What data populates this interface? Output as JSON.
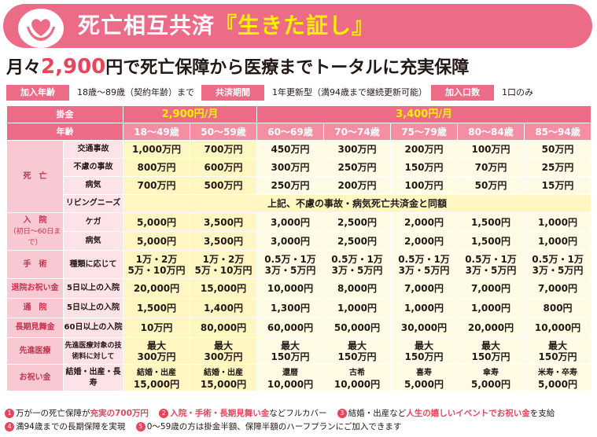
{
  "banner": {
    "title_main": "死亡相互共済",
    "title_highlight": "『生きた証し』"
  },
  "headline": {
    "pre": "月々",
    "amount": "2,900",
    "post": "円で死亡保障から医療までトータルに充実保障"
  },
  "conditions": [
    {
      "label": "加入年齢",
      "value": "18歳～89歳（契約年齢）まで"
    },
    {
      "label": "共済期間",
      "value": "1年更新型（満94歳まで継続更新可能）"
    },
    {
      "label": "加入口数",
      "value": "1口のみ"
    }
  ],
  "table": {
    "premium_label": "掛金",
    "premium_a": "2,900円/月",
    "premium_b": "3,400円/月",
    "age_label": "年齢",
    "ages": [
      "18～49歳",
      "50～59歳",
      "60～69歳",
      "70～74歳",
      "75～79歳",
      "80～84歳",
      "85～94歳"
    ],
    "death_label": "死　亡",
    "death_rows": [
      {
        "sub": "交通事故",
        "values": [
          "1,000万円",
          "700万円",
          "450万円",
          "300万円",
          "200万円",
          "100万円",
          "50万円"
        ]
      },
      {
        "sub": "不慮の事故",
        "values": [
          "800万円",
          "600万円",
          "300万円",
          "250万円",
          "150万円",
          "70万円",
          "25万円"
        ]
      },
      {
        "sub": "病気",
        "values": [
          "700万円",
          "500万円",
          "250万円",
          "200万円",
          "100万円",
          "50万円",
          "15万円"
        ]
      }
    ],
    "living_needs": {
      "sub": "リビングニーズ",
      "value": "上記、不慮の事故・病気死亡共済金と同額"
    },
    "hosp_label": "入　院",
    "hosp_note": "（初日～60日まで）",
    "hosp_rows": [
      {
        "sub": "ケガ",
        "values": [
          "5,000円",
          "3,500円",
          "3,000円",
          "2,500円",
          "2,000円",
          "1,500円",
          "1,000円"
        ]
      },
      {
        "sub": "病気",
        "values": [
          "5,000円",
          "3,500円",
          "3,000円",
          "2,500円",
          "2,000円",
          "1,500円",
          "1,000円"
        ]
      }
    ],
    "surgery": {
      "label": "手　術",
      "sub": "種類に応じて",
      "values": [
        [
          "1万・2万",
          "5万・10万円"
        ],
        [
          "1万・2万",
          "5万・10万円"
        ],
        [
          "0.5万・1万",
          "3万・5万円"
        ],
        [
          "0.5万・1万",
          "3万・5万円"
        ],
        [
          "0.5万・1万",
          "3万・5万円"
        ],
        [
          "0.5万・1万",
          "3万・5万円"
        ],
        [
          "0.5万・1万",
          "3万・5万円"
        ]
      ]
    },
    "discharge": {
      "label": "退院お祝い金",
      "sub": "5日以上の入院",
      "values": [
        "20,000円",
        "15,000円",
        "10,000円",
        "8,000円",
        "7,000円",
        "7,000円",
        "7,000円"
      ]
    },
    "outpatient": {
      "label": "通　院",
      "sub": "5日以上の入院",
      "values": [
        "1,500円",
        "1,400円",
        "1,300円",
        "1,000円",
        "1,000円",
        "1,000円",
        "800円"
      ]
    },
    "long_visit": {
      "label": "長期見舞金",
      "sub": "60日以上の入院",
      "values": [
        "10万円",
        "80,000円",
        "60,000円",
        "50,000円",
        "30,000円",
        "20,000円",
        "10,000円"
      ]
    },
    "advanced": {
      "label": "先進医療",
      "sub": "先進医療対象の技術料に対して",
      "values": [
        [
          "最大",
          "300万円"
        ],
        [
          "最大",
          "300万円"
        ],
        [
          "最大",
          "150万円"
        ],
        [
          "最大",
          "150万円"
        ],
        [
          "最大",
          "150万円"
        ],
        [
          "最大",
          "150万円"
        ],
        [
          "最大",
          "150万円"
        ]
      ]
    },
    "celebration": {
      "label": "お祝い金",
      "sub": "結婚・出産・長寿",
      "values": [
        [
          "結婚・出産",
          "15,000円"
        ],
        [
          "結婚・出産",
          "15,000円"
        ],
        [
          "還暦",
          "10,000円"
        ],
        [
          "古希",
          "10,000円"
        ],
        [
          "喜寿",
          "5,000円"
        ],
        [
          "傘寿",
          "5,000円"
        ],
        [
          "米寿・卒寿",
          "5,000円"
        ]
      ]
    }
  },
  "notes": {
    "n1a": "万が一の死亡保障が",
    "n1b": "充実の700万円",
    "n2a": "入院・手術・長期見舞い金",
    "n2b": "などフルカバー",
    "n3a": "結婚・出産など",
    "n3b": "人生の嬉しいイベントでお祝い金",
    "n3c": "を支給",
    "n4": "満94歳までの長期保障を実現",
    "n5": "0～59歳の方は掛金半額、保障半額のハーフプランにご加入できます"
  },
  "colors": {
    "accent": "#ec6c87",
    "highlight": "#fff100",
    "red": "#e8445a"
  }
}
